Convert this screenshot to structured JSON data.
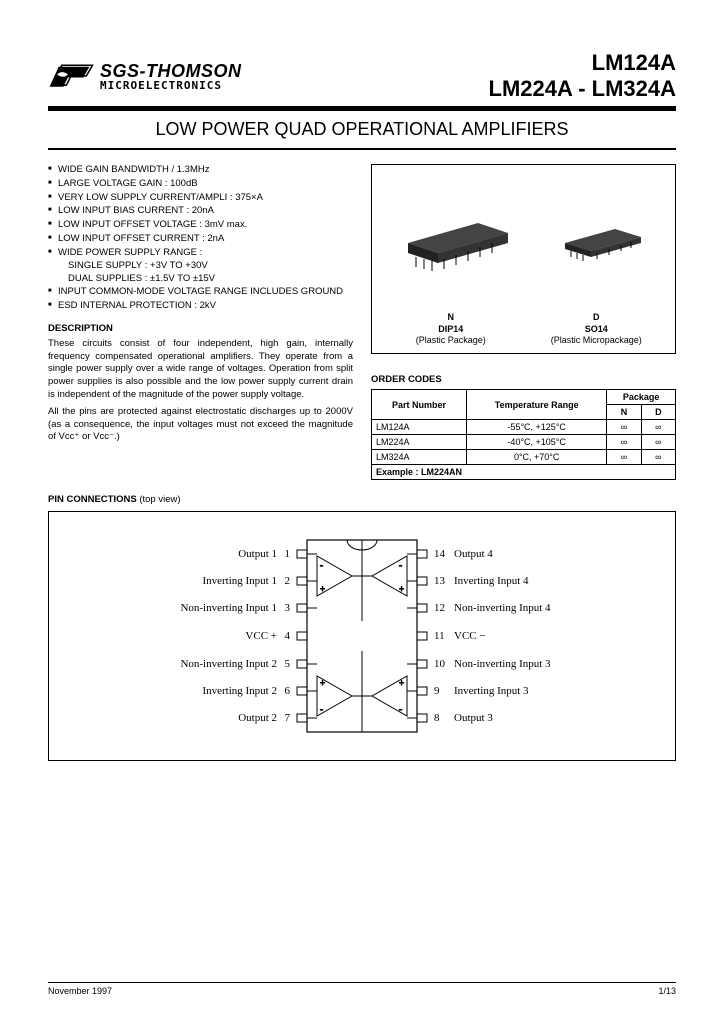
{
  "logo": {
    "company": "SGS-THOMSON",
    "sub": "MICROELECTRONICS"
  },
  "partNumbers": {
    "line1": "LM124A",
    "line2": "LM224A - LM324A"
  },
  "title": "LOW POWER QUAD OPERATIONAL AMPLIFIERS",
  "features": [
    "WIDE GAIN BANDWIDTH / 1.3MHz",
    "LARGE VOLTAGE GAIN : 100dB",
    "VERY LOW SUPPLY CURRENT/AMPLI : 375×A",
    "LOW INPUT BIAS CURRENT : 20nA",
    "LOW INPUT OFFSET VOLTAGE : 3mV max.",
    "LOW INPUT OFFSET CURRENT : 2nA",
    "WIDE POWER SUPPLY RANGE :",
    "INPUT COMMON-MODE VOLTAGE RANGE INCLUDES GROUND",
    "ESD INTERNAL PROTECTION : 2kV"
  ],
  "supplyLines": {
    "single": "SINGLE SUPPLY : +3V TO +30V",
    "dual": "DUAL SUPPLIES : ±1.5V TO ±15V"
  },
  "descriptionHeading": "DESCRIPTION",
  "description": {
    "p1": "These circuits consist of four independent, high gain, internally frequency compensated operational amplifiers. They operate from a single power supply over a wide range of  voltages. Operation from split power supplies is also possible and the low power supply current drain is independent of the magnitude of the power supply voltage.",
    "p2": "All the pins are protected against electrostatic discharges up to 2000V (as a consequence, the input voltages must not exceed the magnitude of Vᴄᴄ⁺ or Vᴄᴄ⁻.)"
  },
  "packages": {
    "n": {
      "code": "N",
      "name": "DIP14",
      "note": "(Plastic Package)"
    },
    "d": {
      "code": "D",
      "name": "SO14",
      "note": "(Plastic Micropackage)"
    }
  },
  "orderCodes": {
    "title": "ORDER CODES",
    "headers": {
      "part": "Part Number",
      "temp": "Temperature Range",
      "pkg": "Package",
      "n": "N",
      "d": "D"
    },
    "rows": [
      {
        "part": "LM124A",
        "temp": "-55°C, +125°C",
        "n": "∞",
        "d": "∞"
      },
      {
        "part": "LM224A",
        "temp": "-40°C, +105°C",
        "n": "∞",
        "d": "∞"
      },
      {
        "part": "LM324A",
        "temp": "0°C, +70°C",
        "n": "∞",
        "d": "∞"
      }
    ],
    "example": "Example : LM224AN"
  },
  "pinConn": {
    "heading": "PIN CONNECTIONS",
    "sub": "(top view)",
    "left": [
      {
        "num": "1",
        "label": "Output 1"
      },
      {
        "num": "2",
        "label": "Inverting Input 1"
      },
      {
        "num": "3",
        "label": "Non-inverting Input 1"
      },
      {
        "num": "4",
        "label": "VCC +"
      },
      {
        "num": "5",
        "label": "Non-inverting Input 2"
      },
      {
        "num": "6",
        "label": "Inverting Input 2"
      },
      {
        "num": "7",
        "label": "Output 2"
      }
    ],
    "right": [
      {
        "num": "14",
        "label": "Output 4"
      },
      {
        "num": "13",
        "label": "Inverting Input 4"
      },
      {
        "num": "12",
        "label": "Non-inverting Input 4"
      },
      {
        "num": "11",
        "label": "VCC −"
      },
      {
        "num": "10",
        "label": "Non-inverting Input 3"
      },
      {
        "num": "9",
        "label": "Inverting Input 3"
      },
      {
        "num": "8",
        "label": "Output 3"
      }
    ]
  },
  "footer": {
    "date": "November 1997",
    "page": "1/13"
  },
  "colors": {
    "text": "#000000",
    "bg": "#ffffff",
    "rule": "#000000"
  }
}
